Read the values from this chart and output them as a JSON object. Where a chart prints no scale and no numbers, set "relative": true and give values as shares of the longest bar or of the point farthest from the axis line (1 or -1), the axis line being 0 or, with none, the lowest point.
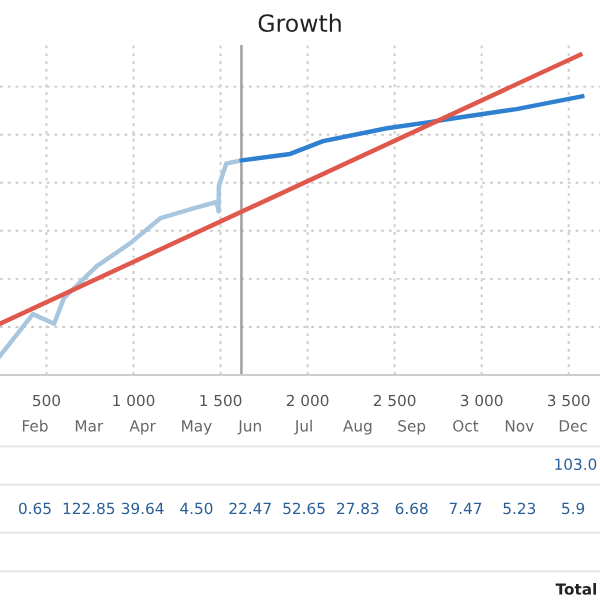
{
  "chart_data": [
    {
      "type": "line",
      "title": "Growth",
      "relative": true,
      "grid": true,
      "xlim": [
        233,
        3680
      ],
      "xticks": [
        500,
        {
          "value": 1000,
          "label": "1 000"
        },
        {
          "value": 1500,
          "label": "1 500"
        },
        {
          "value": 2000,
          "label": "2 000"
        },
        {
          "value": 2500,
          "label": "2 500"
        },
        {
          "value": 3000,
          "label": "3 000"
        },
        {
          "value": 3500,
          "label": "3 500"
        }
      ],
      "ref_lines": [
        {
          "axis": "x",
          "value": 1620,
          "color": "#a0a0a0"
        }
      ],
      "series": [
        {
          "color": "#a9c6df",
          "x": [
            233,
            422,
            544,
            600,
            789,
            978,
            1156,
            1344,
            1478,
            1489,
            1490,
            1533,
            1622
          ],
          "values": [
            0.06,
            0.19,
            0.16,
            0.24,
            0.34,
            0.41,
            0.49,
            0.52,
            0.54,
            0.51,
            0.59,
            0.66,
            0.67
          ]
        },
        {
          "color": "#2f80d0",
          "x": [
            1622,
            1900,
            2089,
            2456,
            2711,
            2822,
            3200,
            3578
          ],
          "values": [
            0.67,
            0.69,
            0.73,
            0.77,
            0.79,
            0.8,
            0.83,
            0.87
          ]
        },
        {
          "color": "#e0584c",
          "x": [
            233,
            3567
          ],
          "values": [
            0.16,
            1.0
          ]
        }
      ]
    },
    {
      "type": "other",
      "categories": [
        "Feb",
        "Mar",
        "Apr",
        "May",
        "Jun",
        "Jul",
        "Aug",
        "Sep",
        "Oct",
        "Nov",
        "Dec"
      ],
      "values": [
        0.65,
        122.85,
        39.64,
        4.5,
        22.47,
        52.65,
        27.83,
        6.68,
        7.47,
        5.23,
        5.9
      ],
      "value_labels": [
        "0.65",
        "122.85",
        "39.64",
        "4.50",
        "22.47",
        "52.65",
        "27.83",
        "6.68",
        "7.47",
        "5.23",
        "5.9"
      ],
      "annotations": [
        "103.0",
        "Total"
      ]
    }
  ]
}
